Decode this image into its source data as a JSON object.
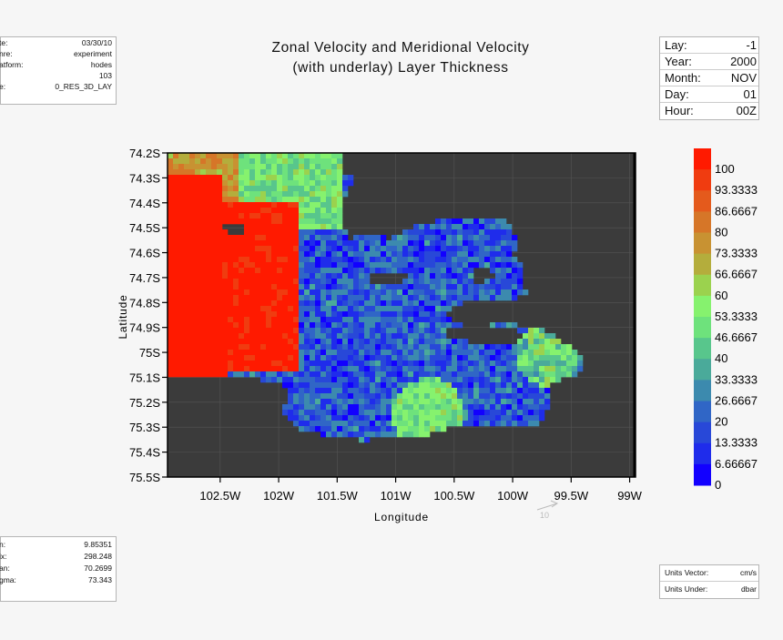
{
  "info_topleft": [
    {
      "key": "te:",
      "value": "03/30/10"
    },
    {
      "key": "nre:",
      "value": "experiment"
    },
    {
      "key": "atform:",
      "value": "hodes"
    },
    {
      "key": "",
      "value": "103"
    },
    {
      "key": "e:",
      "value": "0_RES_3D_LAY"
    }
  ],
  "info_topright": [
    {
      "key": "Lay:",
      "value": "-1"
    },
    {
      "key": "Year:",
      "value": "2000"
    },
    {
      "key": "Month:",
      "value": "NOV"
    },
    {
      "key": "Day:",
      "value": "01"
    },
    {
      "key": "Hour:",
      "value": "00Z"
    }
  ],
  "info_bottomleft": [
    {
      "key": "n:",
      "value": "9.85351"
    },
    {
      "key": "ix:",
      "value": "298.248"
    },
    {
      "key": "an:",
      "value": "70.2699"
    },
    {
      "key": "gma:",
      "value": "73.343"
    }
  ],
  "info_bottomright": [
    {
      "key": "Units Vector:",
      "value": "cm/s"
    },
    {
      "key": "Units Under:",
      "value": "dbar"
    }
  ],
  "title_line1": "Zonal Velocity and Meridional Velocity",
  "title_line2": "(with underlay) Layer Thickness",
  "chart_data": {
    "type": "heatmap",
    "title": "Zonal Velocity and Meridional Velocity (with underlay) Layer Thickness",
    "xlabel": "Longitude",
    "ylabel": "Latitude",
    "x_ticks": [
      "102.5W",
      "102W",
      "101.5W",
      "101W",
      "100.5W",
      "100W",
      "99.5W",
      "99W"
    ],
    "y_ticks": [
      "74.2S",
      "74.3S",
      "74.4S",
      "74.5S",
      "74.6S",
      "74.7S",
      "74.8S",
      "74.9S",
      "75S",
      "75.1S",
      "75.2S",
      "75.3S",
      "75.4S",
      "75.5S"
    ],
    "xlim": [
      -102.95,
      -98.95
    ],
    "ylim": [
      -75.5,
      -74.2
    ],
    "vector_reference": "10",
    "colorbar": {
      "labels": [
        "100",
        "93.3333",
        "86.6667",
        "80",
        "73.3333",
        "66.6667",
        "60",
        "53.3333",
        "46.6667",
        "40",
        "33.3333",
        "26.6667",
        "20",
        "13.3333",
        "6.66667",
        "0"
      ],
      "colors": [
        "#ff1a00",
        "#f03c10",
        "#e45a1c",
        "#d67628",
        "#c89232",
        "#b4ad3c",
        "#9bd24e",
        "#86f26e",
        "#6ee27c",
        "#58c68c",
        "#4aaa9a",
        "#3c8aae",
        "#3066c6",
        "#2848d8",
        "#1f2ceb",
        "#1200ff"
      ],
      "range": [
        0,
        100
      ]
    },
    "grid": true,
    "background": "#3b3b3b"
  }
}
